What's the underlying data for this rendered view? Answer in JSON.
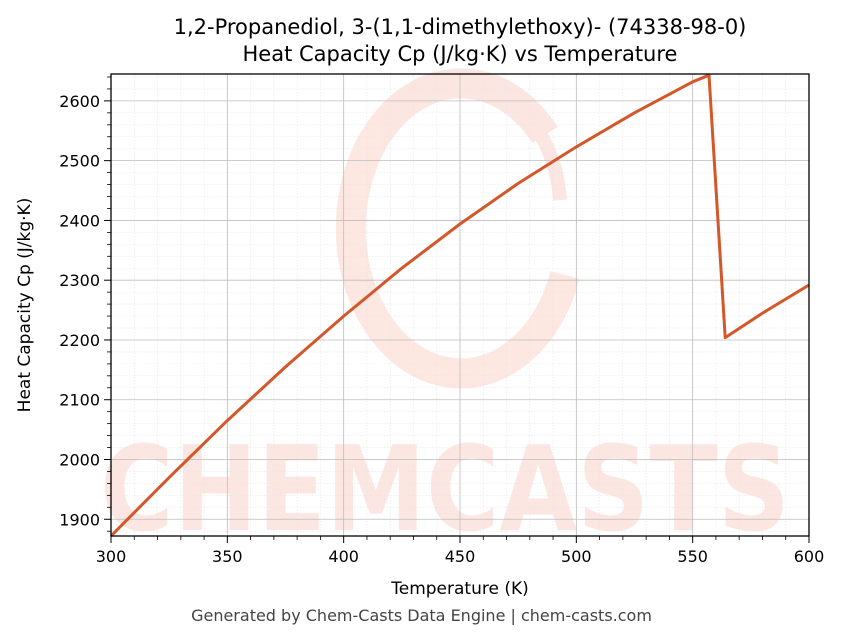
{
  "chart_data": {
    "type": "line",
    "title": "1,2-Propanediol, 3-(1,1-dimethylethoxy)- (74338-98-0)",
    "subtitle": "Heat Capacity Cp (J/kg·K) vs Temperature",
    "xlabel": "Temperature (K)",
    "ylabel": "Heat Capacity Cp (J/kg·K)",
    "xlim": [
      300,
      600
    ],
    "ylim": [
      1872,
      2645
    ],
    "x_ticks": [
      300,
      350,
      400,
      450,
      500,
      550,
      600
    ],
    "y_ticks": [
      1900,
      2000,
      2100,
      2200,
      2300,
      2400,
      2500,
      2600
    ],
    "grid": true,
    "line_color": "#d4572a",
    "series": [
      {
        "x": [
          300,
          325,
          350,
          375,
          400,
          425,
          450,
          475,
          500,
          525,
          550,
          557,
          564,
          580,
          600
        ],
        "values": [
          1872,
          1970,
          2065,
          2155,
          2240,
          2320,
          2394,
          2462,
          2523,
          2580,
          2632,
          2643,
          2204,
          2245,
          2292
        ]
      }
    ]
  },
  "watermark": "CHEMCASTS",
  "footer": "Generated by Chem-Casts Data Engine | chem-casts.com"
}
